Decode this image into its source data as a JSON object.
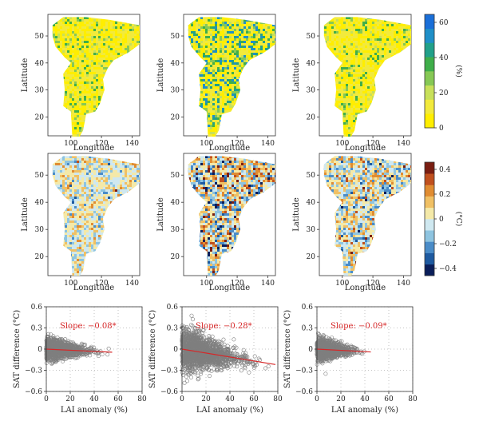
{
  "map_axes": {
    "xlabel": "Longitude",
    "ylabel": "Latitude",
    "xticks": [
      "100",
      "120",
      "140"
    ],
    "yticks": [
      "20",
      "30",
      "40",
      "50"
    ]
  },
  "colorbars": [
    {
      "unit": "(%)",
      "ticks": [
        "0",
        "20",
        "40",
        "60"
      ],
      "colors": [
        "#ffee00",
        "#f2ea3c",
        "#c8e05a",
        "#86c855",
        "#3fae4a",
        "#21a08a",
        "#1f8fc8",
        "#1a6fd8"
      ]
    },
    {
      "unit": "(°C)",
      "ticks": [
        "−0.4",
        "−0.2",
        "0",
        "0.2",
        "0.4"
      ],
      "colors": [
        "#0a1e5a",
        "#1e5aa0",
        "#4a8cc8",
        "#8ec4e0",
        "#cfe8f0",
        "#f4e9a8",
        "#f0c064",
        "#e08c32",
        "#c0501e",
        "#7a1e12"
      ]
    }
  ],
  "chart_data": [
    {
      "type": "scatter",
      "xlabel": "LAI anomaly (%)",
      "ylabel": "SAT difference (°C)",
      "xlim": [
        0,
        80
      ],
      "ylim": [
        -0.6,
        0.6
      ],
      "xticks": [
        "0",
        "20",
        "40",
        "60",
        "80"
      ],
      "yticks": [
        "−0.6",
        "−0.3",
        "0",
        "0.3",
        "0.6"
      ],
      "annotation": "Slope: −0.08*",
      "slope": -0.08,
      "fit_x": [
        0,
        55
      ],
      "x_max": 55
    },
    {
      "type": "scatter",
      "xlabel": "LAI anomaly (%)",
      "ylabel": "SAT difference (°C)",
      "xlim": [
        0,
        80
      ],
      "ylim": [
        -0.6,
        0.6
      ],
      "xticks": [
        "0",
        "20",
        "40",
        "60",
        "80"
      ],
      "yticks": [
        "−0.6",
        "−0.3",
        "0",
        "0.3",
        "0.6"
      ],
      "annotation": "Slope: −0.28*",
      "slope": -0.28,
      "fit_x": [
        0,
        78
      ],
      "x_max": 78
    },
    {
      "type": "scatter",
      "xlabel": "LAI anomaly (%)",
      "ylabel": "SAT difference (°C)",
      "xlim": [
        0,
        80
      ],
      "ylim": [
        -0.6,
        0.6
      ],
      "xticks": [
        "0",
        "20",
        "40",
        "60",
        "80"
      ],
      "yticks": [
        "−0.6",
        "−0.3",
        "0",
        "0.3",
        "0.6"
      ],
      "annotation": "Slope: −0.09*",
      "slope": -0.09,
      "fit_x": [
        0,
        45
      ],
      "x_max": 45
    }
  ]
}
